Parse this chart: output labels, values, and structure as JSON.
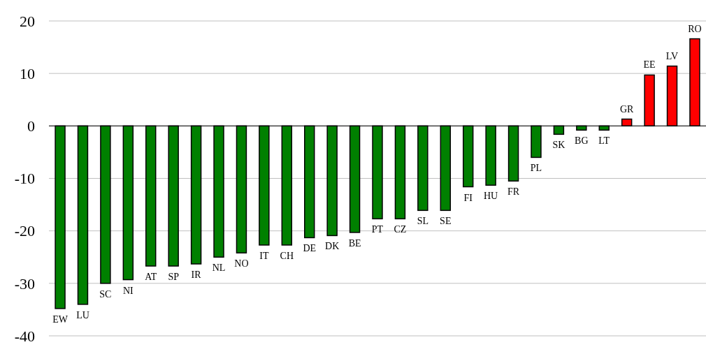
{
  "chart_data": {
    "type": "bar",
    "categories": [
      "EW",
      "LU",
      "SC",
      "NI",
      "AT",
      "SP",
      "IR",
      "NL",
      "NO",
      "IT",
      "CH",
      "DE",
      "DK",
      "BE",
      "PT",
      "CZ",
      "SL",
      "SE",
      "FI",
      "HU",
      "FR",
      "PL",
      "SK",
      "BG",
      "LT",
      "GR",
      "EE",
      "LV",
      "RO"
    ],
    "values": [
      -34.8,
      -34,
      -30,
      -29.3,
      -26.7,
      -26.7,
      -26.3,
      -25,
      -24.2,
      -22.7,
      -22.7,
      -21.3,
      -20.9,
      -20.3,
      -17.7,
      -17.7,
      -16.1,
      -16.1,
      -11.6,
      -11.3,
      -10.5,
      -6,
      -1.6,
      -0.8,
      -0.8,
      1.3,
      9.7,
      11.4,
      16.6
    ],
    "colors": [
      "#008000",
      "#008000",
      "#008000",
      "#008000",
      "#008000",
      "#008000",
      "#008000",
      "#008000",
      "#008000",
      "#008000",
      "#008000",
      "#008000",
      "#008000",
      "#008000",
      "#008000",
      "#008000",
      "#008000",
      "#008000",
      "#008000",
      "#008000",
      "#008000",
      "#008000",
      "#008000",
      "#008000",
      "#008000",
      "#ff0000",
      "#ff0000",
      "#ff0000",
      "#ff0000"
    ],
    "ylim": [
      -40,
      20
    ],
    "yticks": [
      -40,
      -30,
      -20,
      -10,
      0,
      10,
      20
    ],
    "grid": "y"
  }
}
